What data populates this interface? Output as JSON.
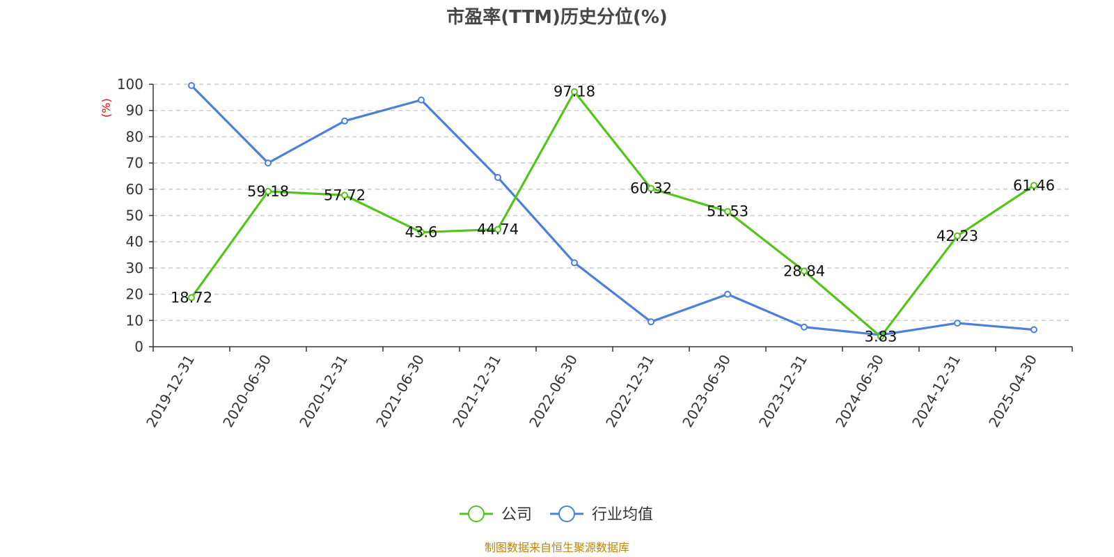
{
  "chart_data": {
    "type": "line",
    "title": "市盈率(TTM)历史分位(%)",
    "ylabel": "(%)",
    "ylim": [
      0,
      100
    ],
    "yticks": [
      "0",
      "10",
      "20",
      "30",
      "40",
      "50",
      "60",
      "70",
      "80",
      "90",
      "100"
    ],
    "categories": [
      "2019-12-31",
      "2020-06-30",
      "2020-12-31",
      "2021-06-30",
      "2021-12-31",
      "2022-06-30",
      "2022-12-31",
      "2023-06-30",
      "2023-12-31",
      "2024-06-30",
      "2024-12-31",
      "2025-04-30"
    ],
    "series": [
      {
        "name": "公司",
        "color": "#52c41a",
        "values": [
          18.72,
          59.18,
          57.72,
          43.6,
          44.74,
          97.18,
          60.32,
          51.53,
          28.84,
          3.83,
          42.23,
          61.46
        ],
        "labels": [
          "18.72",
          "59.18",
          "57.72",
          "43.6",
          "44.74",
          "97.18",
          "60.32",
          "51.53",
          "28.84",
          "3.83",
          "42.23",
          "61.46"
        ]
      },
      {
        "name": "行业均值",
        "color": "#4a7fdc",
        "values": [
          99.5,
          70,
          86,
          94,
          64.5,
          32,
          9.5,
          20,
          7.5,
          4.5,
          9,
          6.5
        ]
      }
    ],
    "grid": true,
    "legend_position": "bottom-center",
    "source_text": "制图数据来自恒生聚源数据库"
  }
}
